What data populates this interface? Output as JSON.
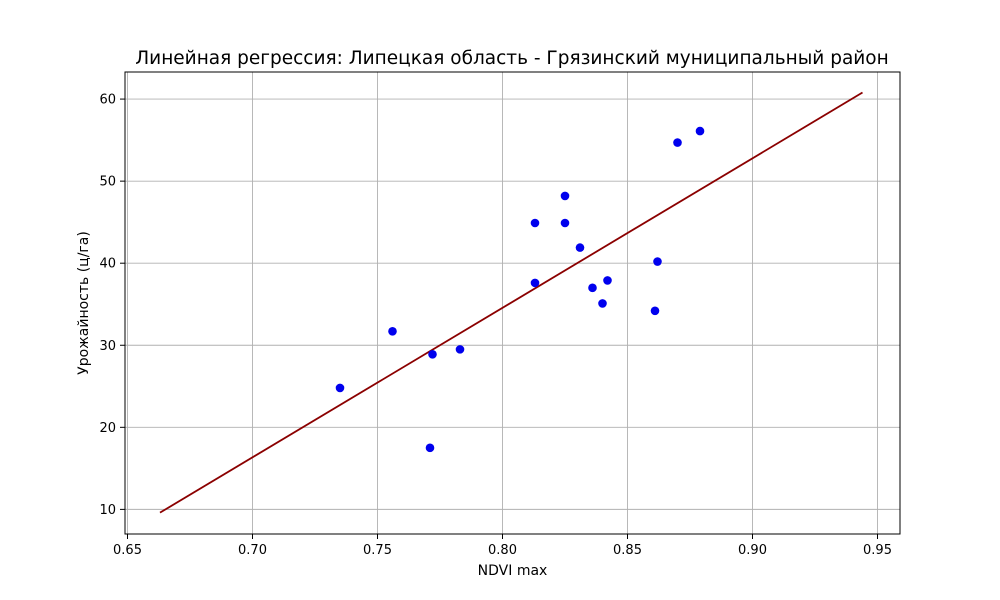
{
  "chart_data": {
    "type": "scatter",
    "title": "Линейная регрессия: Липецкая область - Грязинский муниципальный район",
    "xlabel": "NDVI max",
    "ylabel": "Урожайность (ц/га)",
    "xlim": [
      0.649,
      0.959
    ],
    "ylim": [
      7.0,
      63.3
    ],
    "grid": true,
    "xticks": [
      0.65,
      0.7,
      0.75,
      0.8,
      0.85,
      0.9,
      0.95
    ],
    "xtick_labels": [
      "0.65",
      "0.70",
      "0.75",
      "0.80",
      "0.85",
      "0.90",
      "0.95"
    ],
    "yticks": [
      10,
      20,
      30,
      40,
      50,
      60
    ],
    "ytick_labels": [
      "10",
      "20",
      "30",
      "40",
      "50",
      "60"
    ],
    "series": [
      {
        "kind": "scatter",
        "color": "#0000ee",
        "points": [
          {
            "x": 0.735,
            "y": 24.8
          },
          {
            "x": 0.756,
            "y": 31.7
          },
          {
            "x": 0.771,
            "y": 17.5
          },
          {
            "x": 0.772,
            "y": 28.9
          },
          {
            "x": 0.783,
            "y": 29.5
          },
          {
            "x": 0.813,
            "y": 44.9
          },
          {
            "x": 0.813,
            "y": 37.6
          },
          {
            "x": 0.825,
            "y": 48.2
          },
          {
            "x": 0.825,
            "y": 44.9
          },
          {
            "x": 0.831,
            "y": 41.9
          },
          {
            "x": 0.836,
            "y": 37.0
          },
          {
            "x": 0.84,
            "y": 35.1
          },
          {
            "x": 0.842,
            "y": 37.9
          },
          {
            "x": 0.861,
            "y": 34.2
          },
          {
            "x": 0.862,
            "y": 40.2
          },
          {
            "x": 0.87,
            "y": 54.7
          },
          {
            "x": 0.879,
            "y": 56.1
          }
        ]
      },
      {
        "kind": "line",
        "color": "#8b0000",
        "points": [
          {
            "x": 0.663,
            "y": 9.6
          },
          {
            "x": 0.944,
            "y": 60.8
          }
        ]
      }
    ]
  }
}
